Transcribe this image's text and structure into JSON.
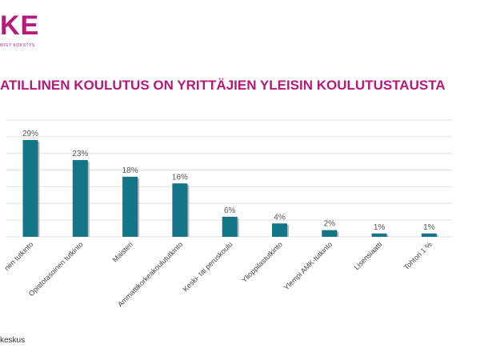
{
  "logo": {
    "text": "KE",
    "tagline": "MIGY KOKSTYS"
  },
  "page_title": "ATILLINEN KOULUTUS ON YRITTÄJIEN YLEISIN KOULUTUSTAUSTA",
  "source_text": "keskus",
  "chart_data": {
    "type": "bar",
    "categories": [
      "nen tutkinto",
      "Opistotasoinen tutkinto",
      "Maisteri",
      "Ammattikorkeakoulututkinto",
      "Keski- tai peruskoulu",
      "Ylioppilastutkinto",
      "Ylempi AMK-tutkinto",
      "Lisensiaatti",
      "Tohtori 1 %"
    ],
    "values": [
      29,
      23,
      18,
      16,
      6,
      4,
      2,
      1,
      1
    ],
    "value_labels": [
      "29%",
      "23%",
      "18%",
      "16%",
      "6%",
      "4%",
      "2%",
      "1%",
      "1%"
    ],
    "title": "",
    "xlabel": "",
    "ylabel": "",
    "ylim": [
      0,
      35
    ],
    "grid": true,
    "bar_color": "#137585",
    "title_color": "#b51a7a"
  }
}
